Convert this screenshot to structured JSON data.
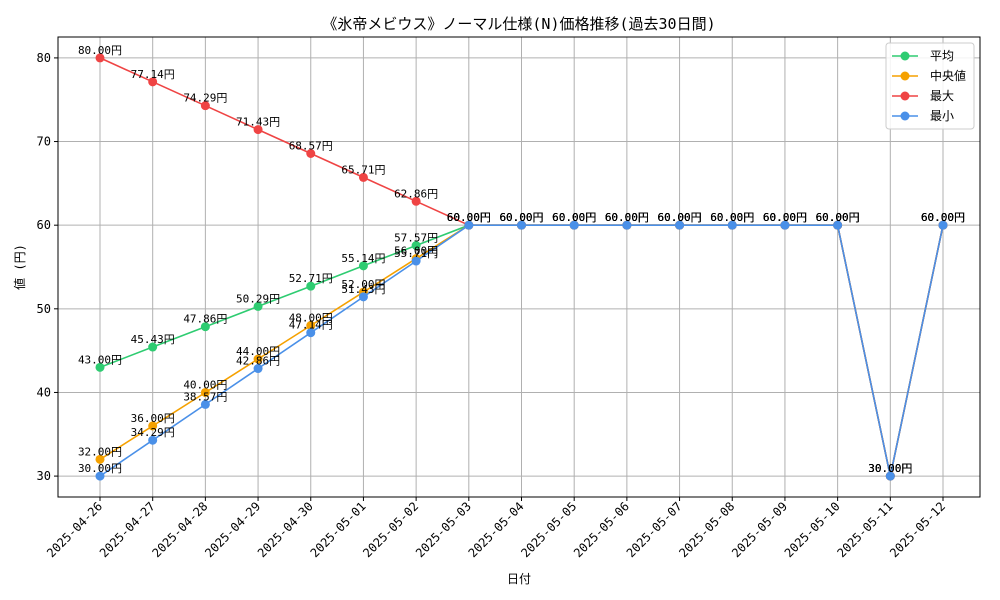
{
  "chart_data": {
    "type": "line",
    "title": "《氷帝メビウス》ノーマル仕様(N)価格推移(過去30日間)",
    "xlabel": "日付",
    "ylabel": "値 (円)",
    "x": [
      "2025-04-26",
      "2025-04-27",
      "2025-04-28",
      "2025-04-29",
      "2025-04-30",
      "2025-05-01",
      "2025-05-02",
      "2025-05-03",
      "2025-05-04",
      "2025-05-05",
      "2025-05-06",
      "2025-05-07",
      "2025-05-08",
      "2025-05-09",
      "2025-05-10",
      "2025-05-11",
      "2025-05-12"
    ],
    "yticks": [
      30,
      40,
      50,
      60,
      70,
      80
    ],
    "ylim": [
      27.5,
      82.5
    ],
    "grid": true,
    "legend_position": "top-right",
    "series": [
      {
        "name": "平均",
        "color": "#2ecc71",
        "values": [
          43.0,
          45.43,
          47.86,
          50.29,
          52.71,
          55.14,
          57.57,
          60.0,
          60.0,
          60.0,
          60.0,
          60.0,
          60.0,
          60.0,
          60.0,
          30.0,
          60.0
        ],
        "labels": [
          "43.00円",
          "45.43円",
          "47.86円",
          "50.29円",
          "52.71円",
          "55.14円",
          "57.57円",
          "60.00円",
          "60.00円",
          "60.00円",
          "60.00円",
          "60.00円",
          "60.00円",
          "60.00円",
          "60.00円",
          "30.00円",
          "60.00円"
        ]
      },
      {
        "name": "中央値",
        "color": "#f5a100",
        "values": [
          32.0,
          36.0,
          40.0,
          44.0,
          48.0,
          52.0,
          56.0,
          60.0,
          60.0,
          60.0,
          60.0,
          60.0,
          60.0,
          60.0,
          60.0,
          30.0,
          60.0
        ],
        "labels": [
          "32.00円",
          "36.00円",
          "40.00円",
          "44.00円",
          "48.00円",
          "52.00円",
          "56.00円",
          "60.00円",
          "60.00円",
          "60.00円",
          "60.00円",
          "60.00円",
          "60.00円",
          "60.00円",
          "60.00円",
          "30.00円",
          "60.00円"
        ]
      },
      {
        "name": "最大",
        "color": "#ef4444",
        "values": [
          80.0,
          77.14,
          74.29,
          71.43,
          68.57,
          65.71,
          62.86,
          60.0,
          60.0,
          60.0,
          60.0,
          60.0,
          60.0,
          60.0,
          60.0,
          30.0,
          60.0
        ],
        "labels": [
          "80.00円",
          "77.14円",
          "74.29円",
          "71.43円",
          "68.57円",
          "65.71円",
          "62.86円",
          "60.00円",
          "60.00円",
          "60.00円",
          "60.00円",
          "60.00円",
          "60.00円",
          "60.00円",
          "60.00円",
          "30.00円",
          "60.00円"
        ]
      },
      {
        "name": "最小",
        "color": "#4a90e8",
        "values": [
          30.0,
          34.29,
          38.57,
          42.86,
          47.14,
          51.43,
          55.71,
          60.0,
          60.0,
          60.0,
          60.0,
          60.0,
          60.0,
          60.0,
          60.0,
          30.0,
          60.0
        ],
        "labels": [
          "30.00円",
          "34.29円",
          "38.57円",
          "42.86円",
          "47.14円",
          "51.43円",
          "55.71円",
          "60.00円",
          "60.00円",
          "60.00円",
          "60.00円",
          "60.00円",
          "60.00円",
          "60.00円",
          "60.00円",
          "30.00円",
          "60.00円"
        ]
      }
    ]
  }
}
